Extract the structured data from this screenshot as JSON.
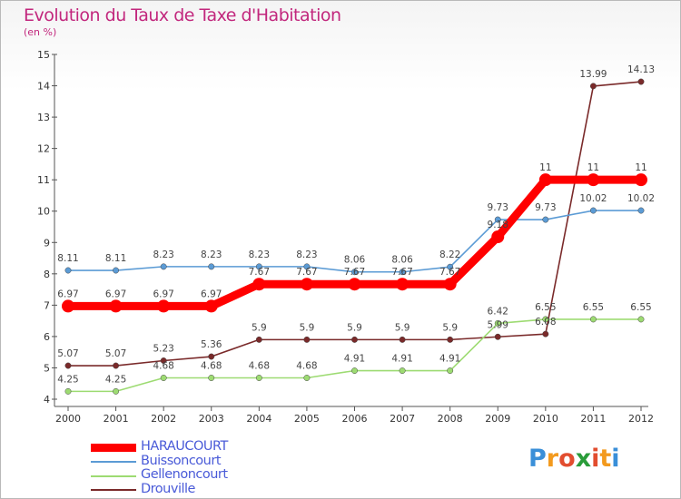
{
  "header": {
    "title": "Evolution du Taux de Taxe d'Habitation",
    "subtitle": "(en %)"
  },
  "logo": {
    "letters": [
      "P",
      "r",
      "o",
      "x",
      "i",
      "t",
      "i"
    ],
    "colors": [
      "#3a8fd8",
      "#f39a1e",
      "#e24d2f",
      "#2a9c3a",
      "#e24d2f",
      "#f39a1e",
      "#3a8fd8"
    ]
  },
  "chart_data": {
    "type": "line",
    "x": [
      "2000",
      "2001",
      "2002",
      "2003",
      "2004",
      "2005",
      "2006",
      "2007",
      "2008",
      "2009",
      "2010",
      "2011",
      "2012"
    ],
    "ylim": [
      4,
      15
    ],
    "yticks": [
      "4",
      "5",
      "6",
      "7",
      "8",
      "9",
      "10",
      "11",
      "12",
      "13",
      "14",
      "15"
    ],
    "grid": false,
    "legend_position": "bottom-left",
    "series": [
      {
        "name": "HARAUCOURT",
        "color": "#ff0000",
        "values": [
          6.97,
          6.97,
          6.97,
          6.97,
          7.67,
          7.67,
          7.67,
          7.67,
          7.67,
          9.18,
          11,
          11,
          11
        ],
        "labels": [
          "6.97",
          "6.97",
          "6.97",
          "6.97",
          "7.67",
          "7.67",
          "7.67",
          "7.67",
          "7.67",
          "9.18",
          "11",
          "11",
          "11"
        ]
      },
      {
        "name": "Buissoncourt",
        "color": "#5b9bd5",
        "values": [
          8.11,
          8.11,
          8.23,
          8.23,
          8.23,
          8.23,
          8.06,
          8.06,
          8.22,
          9.73,
          9.73,
          10.02,
          10.02
        ],
        "labels": [
          "8.11",
          "8.11",
          "8.23",
          "8.23",
          "8.23",
          "8.23",
          "8.06",
          "8.06",
          "8.22",
          "9.73",
          "9.73",
          "10.02",
          "10.02"
        ]
      },
      {
        "name": "Gellenoncourt",
        "color": "#9ddb72",
        "values": [
          4.25,
          4.25,
          4.68,
          4.68,
          4.68,
          4.68,
          4.91,
          4.91,
          4.91,
          6.42,
          6.55,
          6.55,
          6.55
        ],
        "labels": [
          "4.25",
          "4.25",
          "4.68",
          "4.68",
          "4.68",
          "4.68",
          "4.91",
          "4.91",
          "4.91",
          "6.42",
          "6.55",
          "6.55",
          "6.55"
        ]
      },
      {
        "name": "Drouville",
        "color": "#7a2a2a",
        "values": [
          5.07,
          5.07,
          5.23,
          5.36,
          5.9,
          5.9,
          5.9,
          5.9,
          5.9,
          5.99,
          6.08,
          13.99,
          14.13
        ],
        "labels": [
          "5.07",
          "5.07",
          "5.23",
          "5.36",
          "5.9",
          "5.9",
          "5.9",
          "5.9",
          "5.9",
          "5.99",
          "6.08",
          "13.99",
          "14.13"
        ]
      }
    ]
  }
}
